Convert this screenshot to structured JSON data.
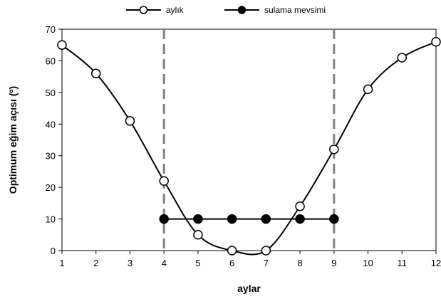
{
  "chart_data": {
    "type": "line",
    "title": "",
    "xlabel": "aylar",
    "ylabel": "Optimum eğim açısı (º)",
    "xlim": [
      1,
      12
    ],
    "ylim": [
      0,
      70
    ],
    "x_ticks": [
      1,
      2,
      3,
      4,
      5,
      6,
      7,
      8,
      9,
      10,
      11,
      12
    ],
    "y_ticks": [
      0,
      10,
      20,
      30,
      40,
      50,
      60,
      70
    ],
    "grid": false,
    "legend_position": "top",
    "reference_lines": [
      {
        "x": 4,
        "style": "dashed",
        "color": "#808080"
      },
      {
        "x": 9,
        "style": "dashed",
        "color": "#808080"
      }
    ],
    "series": [
      {
        "name": "aylık",
        "marker": "open-circle",
        "x": [
          1,
          2,
          3,
          4,
          5,
          6,
          7,
          8,
          9,
          10,
          11,
          12
        ],
        "values": [
          65,
          56,
          41,
          22,
          5,
          0,
          0,
          14,
          32,
          51,
          61,
          66
        ]
      },
      {
        "name": "sulama mevsimi",
        "marker": "filled-circle",
        "x": [
          4,
          5,
          6,
          7,
          8,
          9
        ],
        "values": [
          10,
          10,
          10,
          10,
          10,
          10
        ]
      }
    ]
  }
}
